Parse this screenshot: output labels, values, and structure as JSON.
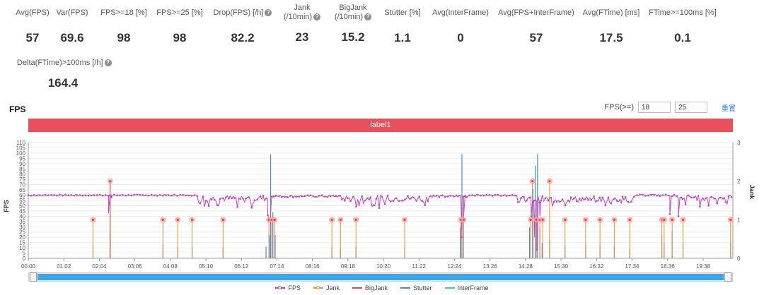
{
  "stats": [
    {
      "label": "Avg(FPS)",
      "value": "57",
      "help": false
    },
    {
      "label": "Var(FPS)",
      "value": "69.6",
      "help": false
    },
    {
      "label": "FPS>=18 [%]",
      "value": "98",
      "help": false
    },
    {
      "label": "FPS>=25 [%]",
      "value": "98",
      "help": false
    },
    {
      "label": "Drop(FPS) [/h]",
      "value": "82.2",
      "help": true
    },
    {
      "label": "Jank (/10min)",
      "value": "23",
      "help": true
    },
    {
      "label": "BigJank (/10min)",
      "value": "15.2",
      "help": true
    },
    {
      "label": "Stutter [%]",
      "value": "1.1",
      "help": false
    },
    {
      "label": "Avg(InterFrame)",
      "value": "0",
      "help": false
    },
    {
      "label": "Avg(FPS+InterFrame)",
      "value": "57",
      "help": false
    },
    {
      "label": "Avg(FTime) [ms]",
      "value": "17.5",
      "help": false
    },
    {
      "label": "FTime>=100ms [%]",
      "value": "0.1",
      "help": false
    },
    {
      "label": "Delta(FTime)>100ms [/h]",
      "value": "164.4",
      "help": true
    }
  ],
  "section_title": "FPS",
  "fps_threshold": {
    "label": "FPS(>=)",
    "low": "18",
    "high": "25",
    "reset": "重置"
  },
  "label_bar": "label1",
  "colors": {
    "fps": "#c147c4",
    "jank": "#f28e2b",
    "bigjank": "#e15043",
    "stutter": "#4a8cdb",
    "interframe": "#34c6da",
    "label": "#e8505b"
  },
  "chart_data": {
    "type": "line",
    "title": "FPS",
    "xlabel": "",
    "ylabel": "FPS",
    "y2label": "Jank",
    "ylim": [
      0,
      110
    ],
    "y2lim": [
      0,
      3
    ],
    "yticks": [
      "0",
      "5",
      "10",
      "15",
      "20",
      "25",
      "30",
      "35",
      "40",
      "45",
      "50",
      "55",
      "60",
      "65",
      "70",
      "75",
      "80",
      "85",
      "90",
      "95",
      "100",
      "105",
      "110"
    ],
    "y2ticks": [
      "0",
      "1",
      "2",
      "3"
    ],
    "x_range": [
      0,
      1230
    ],
    "xticks": [
      {
        "t": 0,
        "label": "00:00"
      },
      {
        "t": 62,
        "label": "01:02"
      },
      {
        "t": 124,
        "label": "02:04"
      },
      {
        "t": 186,
        "label": "03:06"
      },
      {
        "t": 248,
        "label": "04:08"
      },
      {
        "t": 310,
        "label": "05:10"
      },
      {
        "t": 372,
        "label": "06:12"
      },
      {
        "t": 434,
        "label": "07:14"
      },
      {
        "t": 496,
        "label": "08:16"
      },
      {
        "t": 558,
        "label": "09:18"
      },
      {
        "t": 620,
        "label": "10:20"
      },
      {
        "t": 682,
        "label": "11:22"
      },
      {
        "t": 744,
        "label": "12:24"
      },
      {
        "t": 806,
        "label": "13:26"
      },
      {
        "t": 868,
        "label": "14:28"
      },
      {
        "t": 930,
        "label": "15:30"
      },
      {
        "t": 992,
        "label": "16:32"
      },
      {
        "t": 1054,
        "label": "17:34"
      },
      {
        "t": 1116,
        "label": "18:36"
      },
      {
        "t": 1178,
        "label": "19:38"
      }
    ],
    "fps_segments": [
      {
        "t0": 0,
        "t1": 295,
        "base": 60,
        "noise": 0.6
      },
      {
        "t0": 295,
        "t1": 420,
        "base": 57,
        "noise": 3
      },
      {
        "t0": 425,
        "t1": 545,
        "base": 59,
        "noise": 1
      },
      {
        "t0": 545,
        "t1": 700,
        "base": 57,
        "noise": 3
      },
      {
        "t0": 700,
        "t1": 770,
        "base": 59,
        "noise": 1.2
      },
      {
        "t0": 770,
        "t1": 855,
        "base": 60,
        "noise": 0.6
      },
      {
        "t0": 855,
        "t1": 1060,
        "base": 56,
        "noise": 3
      },
      {
        "t0": 1060,
        "t1": 1130,
        "base": 60,
        "noise": 0.8
      },
      {
        "t0": 1130,
        "t1": 1230,
        "base": 58,
        "noise": 2.5
      }
    ],
    "fps_dips": [
      {
        "t": 140,
        "v": 43
      },
      {
        "t": 145,
        "v": 58
      },
      {
        "t": 418,
        "v": 41
      },
      {
        "t": 422,
        "v": 35
      },
      {
        "t": 428,
        "v": 59
      },
      {
        "t": 757,
        "v": 20
      },
      {
        "t": 760,
        "v": 40
      },
      {
        "t": 763,
        "v": 59
      },
      {
        "t": 878,
        "v": 40
      },
      {
        "t": 884,
        "v": 20
      },
      {
        "t": 888,
        "v": 8
      },
      {
        "t": 893,
        "v": 40
      },
      {
        "t": 897,
        "v": 59
      },
      {
        "t": 1120,
        "v": 42
      },
      {
        "t": 1124,
        "v": 59
      },
      {
        "t": 1135,
        "v": 40
      },
      {
        "t": 1140,
        "v": 58
      }
    ],
    "jank": [
      {
        "t": 113,
        "v": 1
      },
      {
        "t": 143,
        "v": 2
      },
      {
        "t": 235,
        "v": 1
      },
      {
        "t": 261,
        "v": 1
      },
      {
        "t": 286,
        "v": 1
      },
      {
        "t": 340,
        "v": 1
      },
      {
        "t": 420,
        "v": 1
      },
      {
        "t": 425,
        "v": 1
      },
      {
        "t": 430,
        "v": 1
      },
      {
        "t": 530,
        "v": 1
      },
      {
        "t": 545,
        "v": 1
      },
      {
        "t": 572,
        "v": 1
      },
      {
        "t": 657,
        "v": 1
      },
      {
        "t": 755,
        "v": 1
      },
      {
        "t": 760,
        "v": 1
      },
      {
        "t": 877,
        "v": 1
      },
      {
        "t": 880,
        "v": 2
      },
      {
        "t": 887,
        "v": 1
      },
      {
        "t": 893,
        "v": 1
      },
      {
        "t": 898,
        "v": 1
      },
      {
        "t": 910,
        "v": 2
      },
      {
        "t": 937,
        "v": 1
      },
      {
        "t": 973,
        "v": 1
      },
      {
        "t": 998,
        "v": 1
      },
      {
        "t": 1023,
        "v": 1
      },
      {
        "t": 1050,
        "v": 1
      },
      {
        "t": 1106,
        "v": 1
      },
      {
        "t": 1110,
        "v": 1
      },
      {
        "t": 1124,
        "v": 1
      },
      {
        "t": 1143,
        "v": 1
      },
      {
        "t": 1226,
        "v": 1
      }
    ],
    "bigjank": [
      {
        "t": 143,
        "v": 2
      }
    ],
    "stutter": [
      {
        "t": 113,
        "v": 0.35
      },
      {
        "t": 143,
        "v": 0.7
      },
      {
        "t": 235,
        "v": 0.35
      },
      {
        "t": 261,
        "v": 0.3
      },
      {
        "t": 286,
        "v": 0.3
      },
      {
        "t": 340,
        "v": 0.3
      },
      {
        "t": 415,
        "v": 0.3
      },
      {
        "t": 421,
        "v": 0.6
      },
      {
        "t": 423,
        "v": 2.7
      },
      {
        "t": 427,
        "v": 1.2
      },
      {
        "t": 431,
        "v": 0.6
      },
      {
        "t": 530,
        "v": 0.3
      },
      {
        "t": 545,
        "v": 0.25
      },
      {
        "t": 572,
        "v": 0.3
      },
      {
        "t": 657,
        "v": 0.3
      },
      {
        "t": 754,
        "v": 0.8
      },
      {
        "t": 757,
        "v": 2.7
      },
      {
        "t": 760,
        "v": 1.3
      },
      {
        "t": 875,
        "v": 0.8
      },
      {
        "t": 881,
        "v": 1.8
      },
      {
        "t": 885,
        "v": 2.4
      },
      {
        "t": 889,
        "v": 2.7
      },
      {
        "t": 893,
        "v": 0.8
      },
      {
        "t": 897,
        "v": 0.4
      },
      {
        "t": 910,
        "v": 0.5
      },
      {
        "t": 937,
        "v": 0.3
      },
      {
        "t": 973,
        "v": 0.35
      },
      {
        "t": 998,
        "v": 0.35
      },
      {
        "t": 1023,
        "v": 0.3
      },
      {
        "t": 1050,
        "v": 0.25
      },
      {
        "t": 1106,
        "v": 0.6
      },
      {
        "t": 1110,
        "v": 0.4
      },
      {
        "t": 1124,
        "v": 0.7
      },
      {
        "t": 1143,
        "v": 0.4
      },
      {
        "t": 1226,
        "v": 0.4
      }
    ],
    "interframe": [],
    "legend": [
      "FPS",
      "Jank",
      "BigJank",
      "Stutter",
      "InterFrame"
    ]
  }
}
